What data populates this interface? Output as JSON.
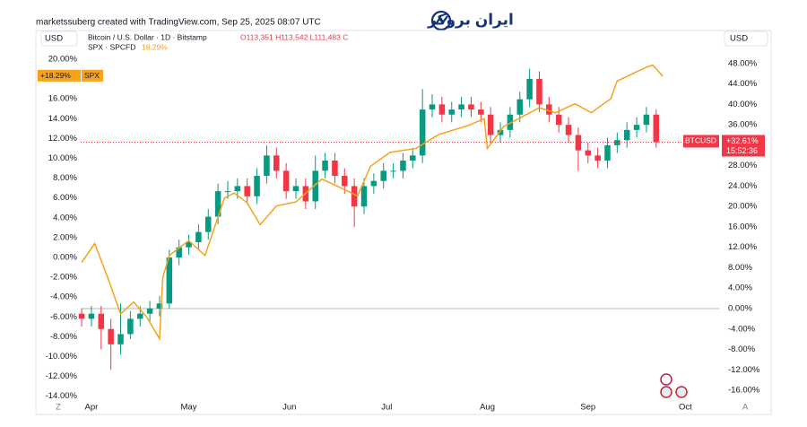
{
  "header": {
    "credit": "marketssuberg created with TradingView.com, Sep 25, 2025 08:07 UTC",
    "logo": "ایران بروکر"
  },
  "chart_data": {
    "type": "candlestick",
    "currency_left": "USD",
    "currency_right": "USD",
    "corner_left": "Z",
    "corner_right": "A",
    "xlim": [
      -3.3,
      193.4
    ],
    "xticks": [
      {
        "value": 0,
        "label": "Apr"
      },
      {
        "value": 30,
        "label": "May"
      },
      {
        "value": 61,
        "label": "Jun"
      },
      {
        "value": 91,
        "label": "Jul"
      },
      {
        "value": 122,
        "label": "Aug"
      },
      {
        "value": 153,
        "label": "Sep"
      },
      {
        "value": 183,
        "label": "Oct"
      }
    ],
    "ylim": [
      -14.75,
      20.54
    ],
    "yticks": [
      {
        "value": -14,
        "label": "-14.00%"
      },
      {
        "value": -12,
        "label": "-12.00%"
      },
      {
        "value": -10,
        "label": "-10.00%"
      },
      {
        "value": -8,
        "label": "-8.00%"
      },
      {
        "value": -6,
        "label": "-6.00%"
      },
      {
        "value": -4,
        "label": "-4.00%"
      },
      {
        "value": -2,
        "label": "-2.00%"
      },
      {
        "value": 0,
        "label": "0.00%"
      },
      {
        "value": 2,
        "label": "2.00%"
      },
      {
        "value": 4,
        "label": "4.00%"
      },
      {
        "value": 6,
        "label": "6.00%"
      },
      {
        "value": 8,
        "label": "8.00%"
      },
      {
        "value": 10,
        "label": "10.00%"
      },
      {
        "value": 12,
        "label": "12.00%"
      },
      {
        "value": 14,
        "label": "14.00%"
      },
      {
        "value": 16,
        "label": "16.00%"
      },
      {
        "value": 20,
        "label": "20.00%"
      }
    ],
    "y2lim": [
      -18.63,
      49.91
    ],
    "y2ticks": [
      {
        "value": -16,
        "label": "-16.00%"
      },
      {
        "value": -12,
        "label": "-12.00%"
      },
      {
        "value": -8,
        "label": "-8.00%"
      },
      {
        "value": -4,
        "label": "-4.00%"
      },
      {
        "value": 0,
        "label": "0.00%"
      },
      {
        "value": 4,
        "label": "4.00%"
      },
      {
        "value": 8,
        "label": "8.00%"
      },
      {
        "value": 12,
        "label": "12.00%"
      },
      {
        "value": 16,
        "label": "16.00%"
      },
      {
        "value": 20,
        "label": "20.00%"
      },
      {
        "value": 24,
        "label": "24.00%"
      },
      {
        "value": 28,
        "label": "28.00%"
      },
      {
        "value": 32,
        "label": "32.00%"
      },
      {
        "value": 36,
        "label": "36.00%"
      },
      {
        "value": 40,
        "label": "40.00%"
      },
      {
        "value": 44,
        "label": "44.00%"
      },
      {
        "value": 48,
        "label": "48.00%"
      }
    ],
    "zero_line": true,
    "candles": {
      "name": "BTCUSD",
      "legend": "Bitcoin / U.S. Dollar · 1D · Bitstamp",
      "ohlc_legend": "O113,351  H113,542  L111,483  C",
      "last_label": "+32.61%",
      "countdown": "15:52:36",
      "axis": "y2",
      "up_color": "#089981",
      "down_color": "#f23645",
      "x": [
        -3,
        0,
        3,
        6,
        9,
        12,
        15,
        18,
        21,
        24,
        27,
        30,
        33,
        36,
        39,
        42,
        45,
        48,
        51,
        54,
        57,
        60,
        63,
        66,
        69,
        72,
        75,
        78,
        81,
        84,
        87,
        90,
        93,
        96,
        99,
        102,
        105,
        108,
        111,
        114,
        117,
        120,
        123,
        126,
        129,
        132,
        135,
        138,
        141,
        144,
        147,
        150,
        153,
        156,
        159,
        162,
        165,
        168,
        171,
        174
      ],
      "open": [
        -1,
        -2,
        -1,
        -4,
        -7,
        -5,
        -2,
        -1,
        0,
        1,
        10,
        12,
        13,
        15,
        18,
        23,
        23,
        24,
        22,
        26,
        30,
        27,
        23,
        24,
        21,
        27,
        29,
        26,
        24,
        20,
        24,
        25,
        27,
        27,
        29,
        30,
        39,
        40,
        38,
        39,
        40,
        39,
        38,
        34,
        35,
        38,
        41,
        45,
        40,
        38,
        36,
        34,
        31,
        30,
        29,
        32,
        33,
        35,
        36,
        38
      ],
      "high": [
        0,
        0.5,
        0.5,
        -2,
        1,
        -0.5,
        0.5,
        1.5,
        2.5,
        11.5,
        13.5,
        14.5,
        16.5,
        19.5,
        24.5,
        25,
        25.5,
        25.5,
        27.5,
        32,
        31.5,
        28.5,
        25.5,
        25.5,
        30,
        30.5,
        30.5,
        27.5,
        25.5,
        25.5,
        26.5,
        28.5,
        28.5,
        30.5,
        31.5,
        43,
        42,
        41.5,
        40.5,
        41.5,
        41.5,
        40.5,
        39.5,
        36.5,
        39.5,
        42.5,
        47,
        46.5,
        41.5,
        39.5,
        37.5,
        35.5,
        32.5,
        31.5,
        33.5,
        34.5,
        36.5,
        37.5,
        39.5,
        39
      ],
      "low": [
        -3.5,
        -3.5,
        -8,
        -12,
        -9,
        -6,
        -3.5,
        -2.5,
        -1.5,
        0,
        8.5,
        10.5,
        11.5,
        13.5,
        16.5,
        21.5,
        21.5,
        20.5,
        20.5,
        24.5,
        25.5,
        21.5,
        21.5,
        19.5,
        19.5,
        25.5,
        24.5,
        22.5,
        16,
        18.5,
        22.5,
        23.5,
        25.5,
        25.5,
        27.5,
        28.5,
        37.5,
        36.5,
        36.5,
        37.5,
        37.5,
        36.5,
        32.5,
        32.5,
        33.5,
        36.5,
        39.5,
        38.5,
        36.5,
        34.5,
        32.5,
        27,
        28.5,
        27.5,
        27.5,
        30.5,
        31.5,
        33.5,
        34.5,
        31.5
      ],
      "close": [
        -2,
        -1,
        -4,
        -7,
        -5,
        -2,
        -1,
        0,
        1,
        10,
        12,
        13,
        15,
        18,
        23,
        23,
        24,
        22,
        26,
        30,
        27,
        23,
        24,
        21,
        27,
        29,
        26,
        24,
        20,
        24,
        25,
        27,
        27,
        29,
        30,
        39,
        40,
        38,
        39,
        40,
        39,
        38,
        34,
        35,
        38,
        41,
        45,
        40,
        38,
        36,
        34,
        31,
        30,
        29,
        32,
        33,
        35,
        36,
        38,
        32.61
      ]
    },
    "line": {
      "name": "SPX",
      "legend": "SPX · SPCFD",
      "last_label": "18.29%",
      "axis_label": "+18.29%",
      "axis": "y",
      "color": "#f7a21b",
      "x": [
        -3,
        1,
        5,
        9,
        13,
        17,
        21,
        22,
        24,
        30,
        35,
        41,
        44,
        48,
        52,
        57,
        63,
        71,
        77,
        82,
        86,
        92,
        100,
        107,
        116,
        121,
        122,
        127,
        138,
        143,
        149,
        154,
        160,
        162,
        171,
        173,
        176
      ],
      "values": [
        -0.5,
        1.4,
        -2,
        -5.7,
        -4.5,
        -6,
        -8.2,
        -2,
        0.2,
        1.7,
        0.2,
        6,
        6.5,
        5.5,
        3.3,
        5.2,
        5.6,
        7.9,
        7,
        6.2,
        9.2,
        10.6,
        11,
        12.4,
        13.3,
        14,
        11,
        13.2,
        15.1,
        14.6,
        15.5,
        14.6,
        16,
        17.8,
        19.2,
        19.4,
        18.29
      ]
    }
  }
}
